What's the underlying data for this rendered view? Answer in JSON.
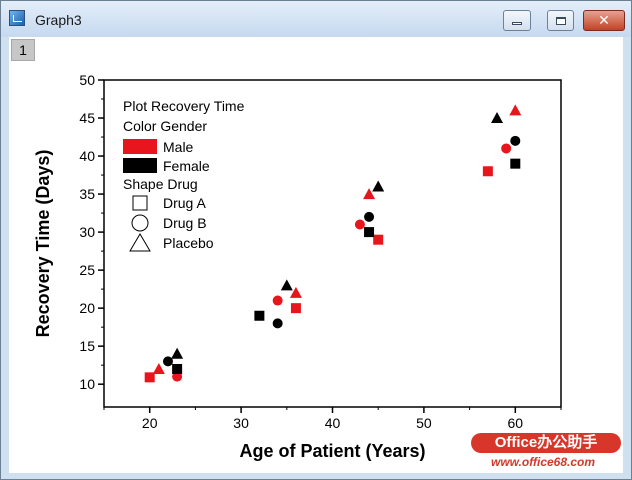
{
  "window": {
    "title": "Graph3",
    "layer_label": "1"
  },
  "chart_data": {
    "type": "scatter",
    "xlabel": "Age of Patient (Years)",
    "ylabel": "Recovery Time (Days)",
    "xlim": [
      15,
      65
    ],
    "ylim": [
      7,
      50
    ],
    "xticks": [
      20,
      30,
      40,
      50,
      60
    ],
    "yticks": [
      10,
      15,
      20,
      25,
      30,
      35,
      40,
      45,
      50
    ],
    "grid": false,
    "legend_position": "top-left",
    "legend": {
      "title": "Plot Recovery Time",
      "color_heading": "Color  Gender",
      "shape_heading": "Shape  Drug",
      "colors": [
        {
          "label": "Male",
          "color": "#e8161c"
        },
        {
          "label": "Female",
          "color": "#000000"
        }
      ],
      "shapes": [
        {
          "label": "Drug A",
          "shape": "square"
        },
        {
          "label": "Drug B",
          "shape": "circle"
        },
        {
          "label": "Placebo",
          "shape": "triangle"
        }
      ]
    },
    "series": [
      {
        "name": "Male, Drug A",
        "gender": "Male",
        "drug": "Drug A",
        "color": "#e8161c",
        "shape": "square",
        "x": [
          20,
          36,
          45,
          57
        ],
        "y": [
          10.9,
          20,
          29,
          38
        ]
      },
      {
        "name": "Male, Drug B",
        "gender": "Male",
        "drug": "Drug B",
        "color": "#e8161c",
        "shape": "circle",
        "x": [
          23,
          34,
          43,
          59
        ],
        "y": [
          11,
          21,
          31,
          41
        ]
      },
      {
        "name": "Male, Placebo",
        "gender": "Male",
        "drug": "Placebo",
        "color": "#e8161c",
        "shape": "triangle",
        "x": [
          21,
          36,
          44,
          60
        ],
        "y": [
          12,
          22,
          35,
          46
        ]
      },
      {
        "name": "Female, Drug A",
        "gender": "Female",
        "drug": "Drug A",
        "color": "#000000",
        "shape": "square",
        "x": [
          23,
          32,
          44,
          60
        ],
        "y": [
          12,
          19,
          30,
          39
        ]
      },
      {
        "name": "Female, Drug B",
        "gender": "Female",
        "drug": "Drug B",
        "color": "#000000",
        "shape": "circle",
        "x": [
          22,
          34,
          44,
          60
        ],
        "y": [
          13,
          18,
          32,
          42
        ]
      },
      {
        "name": "Female, Placebo",
        "gender": "Female",
        "drug": "Placebo",
        "color": "#000000",
        "shape": "triangle",
        "x": [
          23,
          35,
          45,
          58
        ],
        "y": [
          14,
          23,
          36,
          45
        ]
      }
    ]
  },
  "watermark": {
    "brand": "Office办公助手",
    "url": "www.office68.com"
  }
}
